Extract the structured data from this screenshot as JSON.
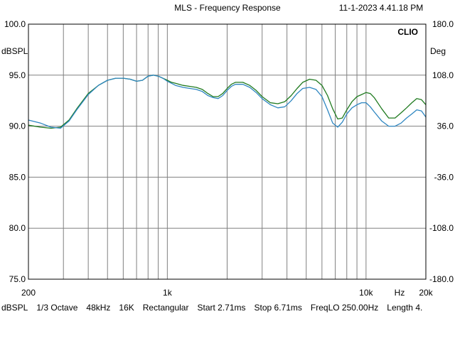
{
  "header": {
    "title": "MLS - Frequency Response",
    "timestamp": "11-1-2023 4.41.18 PM",
    "brand": "CLIO"
  },
  "footer": {
    "items": [
      "dBSPL",
      "1/3 Octave",
      "48kHz",
      "16K",
      "Rectangular",
      "Start 2.71ms",
      "Stop 6.71ms",
      "FreqLO 250.00Hz",
      "Length 4."
    ]
  },
  "colors": {
    "background": "#ffffff",
    "grid": "#808080",
    "series_green": "#1f7a1f",
    "series_blue": "#2e86c1"
  },
  "chart_data": {
    "type": "line",
    "title": "MLS - Frequency Response",
    "xlabel": "Hz",
    "x_scale": "log",
    "xlim": [
      200,
      20000
    ],
    "x_tick_labels": [
      {
        "value": 200,
        "label": "200"
      },
      {
        "value": 1000,
        "label": "1k"
      },
      {
        "value": 10000,
        "label": "10k"
      },
      {
        "value": 20000,
        "label": "20k"
      }
    ],
    "x_minor_ticks": [
      300,
      400,
      500,
      600,
      700,
      800,
      900,
      2000,
      3000,
      4000,
      5000,
      6000,
      7000,
      8000,
      9000
    ],
    "ylabel_left": "dBSPL",
    "ylim_left": [
      75,
      100
    ],
    "y_ticks_left": [
      "75.0",
      "80.0",
      "85.0",
      "90.0",
      "95.0",
      "100.0"
    ],
    "ylabel_right": "Deg",
    "ylim_right": [
      -180,
      180
    ],
    "y_ticks_right": [
      "-180.0",
      "-108.0",
      "-36.0",
      "36.0",
      "108.0",
      "180.0"
    ],
    "grid": true,
    "series": [
      {
        "color": "#1f7a1f",
        "x": [
          200,
          230,
          260,
          290,
          320,
          350,
          400,
          450,
          500,
          550,
          600,
          650,
          700,
          750,
          800,
          850,
          900,
          950,
          1000,
          1050,
          1100,
          1200,
          1300,
          1400,
          1500,
          1600,
          1700,
          1800,
          1900,
          2000,
          2100,
          2200,
          2400,
          2600,
          2800,
          3000,
          3300,
          3600,
          3900,
          4200,
          4500,
          4800,
          5200,
          5600,
          6000,
          6400,
          6800,
          7200,
          7600,
          8000,
          8500,
          9000,
          9500,
          10000,
          10500,
          11000,
          12000,
          13000,
          14000,
          15000,
          16000,
          17000,
          18000,
          19000,
          20000
        ],
        "y": [
          90.1,
          89.9,
          89.8,
          89.9,
          90.6,
          91.7,
          93.2,
          94.0,
          94.5,
          94.7,
          94.7,
          94.6,
          94.4,
          94.5,
          94.9,
          95.0,
          94.9,
          94.7,
          94.5,
          94.3,
          94.2,
          94.0,
          93.9,
          93.8,
          93.6,
          93.2,
          92.9,
          92.9,
          93.2,
          93.7,
          94.1,
          94.3,
          94.3,
          94.0,
          93.5,
          92.9,
          92.3,
          92.2,
          92.4,
          93.0,
          93.7,
          94.3,
          94.6,
          94.5,
          94.0,
          93.0,
          91.7,
          90.7,
          90.8,
          91.6,
          92.4,
          92.9,
          93.1,
          93.3,
          93.2,
          92.8,
          91.7,
          90.8,
          90.8,
          91.3,
          91.8,
          92.3,
          92.7,
          92.6,
          92.1
        ]
      },
      {
        "color": "#2e86c1",
        "x": [
          200,
          230,
          260,
          290,
          320,
          350,
          400,
          450,
          500,
          550,
          600,
          650,
          700,
          750,
          800,
          850,
          900,
          950,
          1000,
          1050,
          1100,
          1200,
          1300,
          1400,
          1500,
          1600,
          1700,
          1800,
          1900,
          2000,
          2100,
          2200,
          2400,
          2600,
          2800,
          3000,
          3300,
          3600,
          3900,
          4200,
          4500,
          4800,
          5200,
          5600,
          6000,
          6400,
          6800,
          7200,
          7600,
          8000,
          8500,
          9000,
          9500,
          10000,
          10500,
          11000,
          12000,
          13000,
          14000,
          15000,
          16000,
          17000,
          18000,
          19000,
          20000
        ],
        "y": [
          90.6,
          90.3,
          89.9,
          89.8,
          90.5,
          91.6,
          93.1,
          94.0,
          94.5,
          94.7,
          94.7,
          94.6,
          94.4,
          94.5,
          94.9,
          95.0,
          94.9,
          94.7,
          94.4,
          94.2,
          94.0,
          93.8,
          93.7,
          93.6,
          93.4,
          93.0,
          92.8,
          92.7,
          93.0,
          93.5,
          93.9,
          94.1,
          94.1,
          93.8,
          93.3,
          92.7,
          92.1,
          91.8,
          91.9,
          92.5,
          93.2,
          93.7,
          93.8,
          93.6,
          92.9,
          91.6,
          90.3,
          89.9,
          90.4,
          91.2,
          91.8,
          92.1,
          92.3,
          92.3,
          91.9,
          91.4,
          90.5,
          90.0,
          90.0,
          90.3,
          90.8,
          91.2,
          91.6,
          91.5,
          90.9
        ]
      }
    ]
  }
}
